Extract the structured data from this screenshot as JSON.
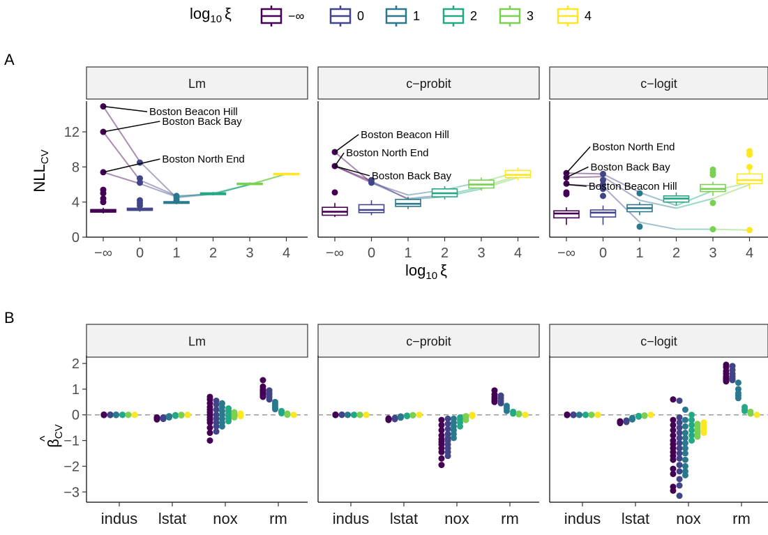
{
  "legend": {
    "title_main": "log",
    "title_sub": "10",
    "title_sym": "ξ",
    "levels": [
      "−∞",
      "0",
      "1",
      "2",
      "3",
      "4"
    ],
    "colors": [
      "#440154",
      "#414487",
      "#2A788E",
      "#22A884",
      "#7AD151",
      "#FDE725"
    ]
  },
  "chart_data": [
    {
      "panel_letter": "A",
      "type": "box",
      "facets": [
        "Lm",
        "c−probit",
        "c−logit"
      ],
      "categories": [
        "−∞",
        "0",
        "1",
        "2",
        "3",
        "4"
      ],
      "xlabel_main": "log",
      "xlabel_sub": "10",
      "xlabel_sym": "ξ",
      "ylabel_main": "NLL",
      "ylabel_sub": "CV",
      "yticks": [
        0,
        4,
        8,
        12
      ],
      "ylim": [
        0,
        15.5
      ],
      "boxes": [
        [
          [
            2.7,
            2.85,
            3.0,
            3.15,
            3.35
          ],
          [
            2.9,
            3.05,
            3.15,
            3.3,
            3.45
          ],
          [
            3.75,
            3.85,
            3.95,
            4.05,
            4.25
          ],
          [
            4.75,
            4.85,
            4.95,
            5.05,
            5.15
          ],
          [
            5.95,
            6.0,
            6.08,
            6.15,
            6.25
          ],
          [
            7.05,
            7.15,
            7.2,
            7.27,
            7.35
          ]
        ],
        [
          [
            2.3,
            2.5,
            2.9,
            3.4,
            3.9
          ],
          [
            2.5,
            2.8,
            3.1,
            3.7,
            4.2
          ],
          [
            3.2,
            3.5,
            3.8,
            4.3,
            4.6
          ],
          [
            4.3,
            4.6,
            5.0,
            5.5,
            5.8
          ],
          [
            5.3,
            5.6,
            6.0,
            6.5,
            6.8
          ],
          [
            6.5,
            6.8,
            7.1,
            7.6,
            7.9
          ]
        ],
        [
          [
            1.4,
            2.2,
            2.7,
            3.0,
            3.4
          ],
          [
            1.4,
            2.3,
            2.8,
            3.1,
            3.6
          ],
          [
            2.5,
            2.9,
            3.3,
            3.7,
            4.0
          ],
          [
            3.6,
            4.0,
            4.4,
            4.7,
            5.1
          ],
          [
            4.7,
            5.2,
            5.5,
            6.0,
            6.3
          ],
          [
            5.5,
            6.1,
            6.5,
            7.2,
            7.7
          ]
        ]
      ],
      "outliers": [
        [
          [
            4.0,
            4.4,
            5.0,
            5.4,
            7.4,
            12.0,
            14.9
          ],
          [
            3.6,
            3.9,
            4.2,
            6.2,
            6.7,
            8.5
          ],
          [
            4.2,
            4.5,
            4.7
          ],
          [],
          [],
          []
        ],
        [
          [
            5.1,
            8.1,
            9.7
          ],
          [
            6.2,
            6.5
          ],
          [],
          [],
          [],
          []
        ],
        [
          [
            4.9,
            5.1,
            6.1,
            6.8,
            7.3
          ],
          [
            4.7,
            5.5,
            6.0,
            6.5,
            7.2
          ],
          [
            1.2,
            5.0
          ],
          [],
          [
            0.9,
            3.9,
            7.1,
            7.4,
            7.7
          ],
          [
            0.8,
            8.0,
            9.4,
            9.8
          ]
        ]
      ],
      "traces": [
        [
          [
            14.9,
            8.6,
            4.5,
            4.9,
            6.0,
            7.2
          ],
          [
            12.0,
            6.5,
            4.7,
            4.9,
            6.0,
            7.2
          ],
          [
            7.4,
            6.1,
            4.6,
            5.0,
            6.0,
            7.2
          ]
        ],
        [
          [
            9.7,
            6.2,
            4.4,
            4.8,
            5.7,
            7.0
          ],
          [
            8.1,
            6.2,
            4.8,
            5.4,
            6.3,
            7.4
          ],
          [
            8.1,
            6.4,
            4.3,
            4.6,
            5.5,
            6.8
          ]
        ],
        [
          [
            7.3,
            7.2,
            5.1,
            3.6,
            5.3,
            6.2
          ],
          [
            6.8,
            6.9,
            4.2,
            3.3,
            4.4,
            6.0
          ],
          [
            6.0,
            5.8,
            1.7,
            0.9,
            0.9,
            0.8
          ]
        ]
      ],
      "annotations": [
        [
          {
            "text": "Boston Beacon Hill",
            "cat": 0,
            "value": 14.9,
            "tcat": 1.2,
            "tvalue": 14.3
          },
          {
            "text": "Boston Back Bay",
            "cat": 0,
            "value": 12.0,
            "tcat": 1.55,
            "tvalue": 13.2
          },
          {
            "text": "Boston North End",
            "cat": 0,
            "value": 7.4,
            "tcat": 1.55,
            "tvalue": 8.9
          }
        ],
        [
          {
            "text": "Boston Beacon Hill",
            "cat": 0,
            "value": 9.7,
            "tcat": 0.65,
            "tvalue": 11.7
          },
          {
            "text": "Boston North End",
            "cat": 0,
            "value": 8.1,
            "tcat": 0.25,
            "tvalue": 9.6
          },
          {
            "text": "Boston Back Bay",
            "cat": 0,
            "value": 8.1,
            "tcat": 0.95,
            "tvalue": 7.0
          }
        ],
        [
          {
            "text": "Boston North End",
            "cat": 0,
            "value": 7.3,
            "tcat": 0.65,
            "tvalue": 10.3
          },
          {
            "text": "Boston Back Bay",
            "cat": 0,
            "value": 6.8,
            "tcat": 0.6,
            "tvalue": 8.0
          },
          {
            "text": "Boston Beacon Hill",
            "cat": 0,
            "value": 6.0,
            "tcat": 0.55,
            "tvalue": 5.8
          }
        ]
      ]
    },
    {
      "panel_letter": "B",
      "type": "scatter",
      "facets": [
        "Lm",
        "c−probit",
        "c−logit"
      ],
      "categories": [
        "indus",
        "lstat",
        "nox",
        "rm"
      ],
      "ylabel_main": "β",
      "ylabel_hat": "^",
      "ylabel_sub": "CV",
      "yticks": [
        -3,
        -2,
        -1,
        0,
        1,
        2
      ],
      "ylim": [
        -3.4,
        2.3
      ],
      "reference_line": 0,
      "series_offsets": [
        -0.29,
        -0.17,
        -0.06,
        0.06,
        0.17,
        0.29
      ],
      "values": [
        [
          [
            [
              0.0,
              -0.01,
              0.01,
              0.0
            ],
            [
              0.0,
              0.01,
              -0.01,
              0.0
            ],
            [
              0.0,
              0.0,
              0.01,
              -0.01
            ],
            [
              0.0,
              0.0,
              0.0,
              0.0
            ],
            [
              0.0,
              0.0,
              0.0,
              0.0
            ],
            [
              0.0,
              0.0,
              0.0,
              0.0
            ]
          ],
          [
            [
              -0.1,
              -0.14,
              -0.18,
              -0.12
            ],
            [
              -0.1,
              -0.13,
              -0.16,
              -0.11
            ],
            [
              -0.06,
              -0.08,
              -0.1,
              -0.05
            ],
            [
              -0.02,
              -0.04,
              -0.03,
              -0.01
            ],
            [
              0.0,
              -0.01,
              0.0,
              -0.02
            ],
            [
              0.0,
              0.0,
              0.0,
              0.0
            ]
          ],
          [
            [
              0.7,
              0.6,
              0.45,
              0.3,
              0.2,
              0.1,
              0.0,
              -0.1,
              -0.2,
              -0.3,
              -0.5,
              -0.7,
              -1.0
            ],
            [
              0.55,
              0.4,
              0.2,
              0.0,
              -0.15,
              -0.3,
              -0.45,
              -0.65
            ],
            [
              0.45,
              0.3,
              0.15,
              0.0,
              -0.15,
              -0.3,
              -0.45
            ],
            [
              0.25,
              0.15,
              0.05,
              -0.05,
              -0.15,
              -0.25
            ],
            [
              0.1,
              0.05,
              0.0,
              -0.05,
              -0.1
            ],
            [
              0.05,
              0.0,
              -0.05
            ]
          ],
          [
            [
              1.35,
              1.1,
              1.0,
              0.95,
              0.9,
              0.85,
              0.8,
              0.75,
              0.7
            ],
            [
              0.95,
              0.85,
              0.8,
              0.7,
              0.6
            ],
            [
              0.5,
              0.42,
              0.35,
              0.28,
              0.22
            ],
            [
              0.15,
              0.1,
              0.06
            ],
            [
              0.05,
              0.02,
              0.0
            ],
            [
              0.0,
              0.0
            ]
          ]
        ],
        [
          [
            [
              0.0,
              0.0,
              0.01,
              -0.01
            ],
            [
              0.0,
              0.0,
              0.0,
              0.01
            ],
            [
              0.0,
              0.0,
              0.0,
              0.0
            ],
            [
              0.0,
              0.0,
              0.0,
              0.0
            ],
            [
              0.0,
              0.0,
              0.0,
              0.0
            ],
            [
              0.0,
              0.0,
              0.0,
              0.0
            ]
          ],
          [
            [
              -0.14,
              -0.18,
              -0.2,
              -0.16
            ],
            [
              -0.12,
              -0.15,
              -0.17
            ],
            [
              -0.06,
              -0.09,
              -0.11
            ],
            [
              -0.03,
              -0.05
            ],
            [
              -0.01,
              -0.02
            ],
            [
              0.0,
              0.0
            ]
          ],
          [
            [
              -0.2,
              -0.4,
              -0.6,
              -0.8,
              -0.95,
              -1.05,
              -1.15,
              -1.3,
              -1.45,
              -1.7,
              -1.95
            ],
            [
              -0.15,
              -0.35,
              -0.55,
              -0.75,
              -0.9,
              -1.0,
              -1.15,
              -1.3,
              -1.45,
              -1.6
            ],
            [
              -0.15,
              -0.3,
              -0.45,
              -0.6,
              -0.75,
              -0.9
            ],
            [
              -0.1,
              -0.2,
              -0.3,
              -0.45
            ],
            [
              -0.05,
              -0.1,
              -0.2
            ],
            [
              0.0,
              -0.05
            ]
          ],
          [
            [
              0.95,
              0.8,
              0.7,
              0.62,
              0.55,
              0.5
            ],
            [
              0.75,
              0.65,
              0.55,
              0.45
            ],
            [
              0.35,
              0.25,
              0.15
            ],
            [
              0.12,
              0.05
            ],
            [
              0.05,
              0.02
            ],
            [
              0.0,
              0.0
            ]
          ]
        ],
        [
          [
            [
              0.0,
              -0.01,
              0.01,
              0.0
            ],
            [
              0.0,
              0.0,
              0.01,
              -0.01
            ],
            [
              0.0,
              0.0,
              0.0,
              0.0
            ],
            [
              0.0,
              0.0,
              0.0,
              0.0
            ],
            [
              0.0,
              0.0,
              0.0,
              0.0
            ],
            [
              0.0,
              0.0,
              0.0,
              0.0
            ]
          ],
          [
            [
              -0.25,
              -0.3,
              -0.32,
              -0.28
            ],
            [
              -0.22,
              -0.26,
              -0.28
            ],
            [
              -0.12,
              -0.16,
              -0.18
            ],
            [
              -0.04,
              -0.07
            ],
            [
              -0.02,
              -0.04
            ],
            [
              0.0,
              0.0
            ]
          ],
          [
            [
              0.6,
              -0.2,
              -0.4,
              -0.6,
              -0.8,
              -1.0,
              -1.15,
              -1.3,
              -1.45,
              -1.6,
              -1.75,
              -2.1,
              -2.3,
              -2.8,
              -2.95
            ],
            [
              0.55,
              -0.1,
              -0.3,
              -0.5,
              -0.7,
              -0.9,
              -1.1,
              -1.3,
              -1.5,
              -1.7,
              -1.95,
              -2.2,
              -2.5,
              -2.75,
              -3.15
            ],
            [
              0.2,
              -0.2,
              -0.45,
              -0.7,
              -0.9,
              -1.1,
              -1.3,
              -1.5,
              -1.75,
              -2.0,
              -2.2,
              -2.35
            ],
            [
              0.0,
              -0.2,
              -0.4,
              -0.6,
              -0.8,
              -1.0
            ],
            [
              -0.35,
              -0.45,
              -0.55,
              -0.65,
              -0.75,
              -0.85
            ],
            [
              -0.3,
              -0.4,
              -0.5,
              -0.6,
              -0.7
            ]
          ],
          [
            [
              1.95,
              1.85,
              1.7,
              1.6,
              1.5,
              1.45,
              1.4,
              1.35,
              1.3
            ],
            [
              1.9,
              1.75,
              1.6,
              1.5,
              1.42,
              1.35
            ],
            [
              1.25,
              1.0,
              0.85,
              0.75,
              0.65
            ],
            [
              0.3,
              0.2,
              0.15
            ],
            [
              0.12,
              0.05
            ],
            [
              0.0,
              0.0
            ]
          ]
        ]
      ]
    }
  ]
}
